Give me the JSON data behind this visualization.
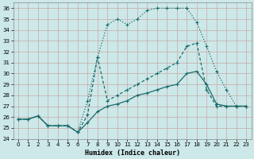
{
  "xlabel": "Humidex (Indice chaleur)",
  "xlim": [
    -0.5,
    23.5
  ],
  "ylim": [
    24,
    36.5
  ],
  "yticks": [
    24,
    25,
    26,
    27,
    28,
    29,
    30,
    31,
    32,
    33,
    34,
    35,
    36
  ],
  "xticks": [
    0,
    1,
    2,
    3,
    4,
    5,
    6,
    7,
    8,
    9,
    10,
    11,
    12,
    13,
    14,
    15,
    16,
    17,
    18,
    19,
    20,
    21,
    22,
    23
  ],
  "bg_color": "#cce8e8",
  "grid_color": "#b8d8d8",
  "line_color": "#1a6b6b",
  "line1_x": [
    0,
    1,
    2,
    3,
    4,
    5,
    6,
    7,
    8,
    9,
    10,
    11,
    12,
    13,
    14,
    15,
    16,
    17,
    18,
    19,
    20,
    21,
    22,
    23
  ],
  "line1_y": [
    25.8,
    25.8,
    26.1,
    25.2,
    25.2,
    25.2,
    24.6,
    27.5,
    31.5,
    34.5,
    35.0,
    34.5,
    35.0,
    35.8,
    36.0,
    36.0,
    36.0,
    36.0,
    34.7,
    32.5,
    30.2,
    28.5,
    27.0,
    27.0
  ],
  "line1_style": "dotted",
  "line2_x": [
    0,
    1,
    2,
    3,
    4,
    5,
    6,
    7,
    8,
    9,
    10,
    11,
    12,
    13,
    14,
    15,
    16,
    17,
    18,
    19,
    20,
    21,
    22,
    23
  ],
  "line2_y": [
    25.8,
    25.8,
    26.1,
    25.2,
    25.2,
    25.2,
    24.6,
    26.2,
    31.5,
    27.5,
    28.0,
    28.5,
    29.0,
    29.5,
    30.0,
    30.5,
    31.0,
    32.5,
    32.8,
    28.5,
    27.0,
    27.0,
    27.0,
    27.0
  ],
  "line2_style": "dashed",
  "line3_x": [
    0,
    1,
    2,
    3,
    4,
    5,
    6,
    7,
    8,
    9,
    10,
    11,
    12,
    13,
    14,
    15,
    16,
    17,
    18,
    19,
    20,
    21,
    22,
    23
  ],
  "line3_y": [
    25.8,
    25.8,
    26.1,
    25.2,
    25.2,
    25.2,
    24.6,
    25.5,
    26.5,
    27.0,
    27.2,
    27.5,
    28.0,
    28.2,
    28.5,
    28.8,
    29.0,
    30.0,
    30.2,
    29.0,
    27.2,
    27.0,
    27.0,
    27.0
  ],
  "line3_style": "solid"
}
